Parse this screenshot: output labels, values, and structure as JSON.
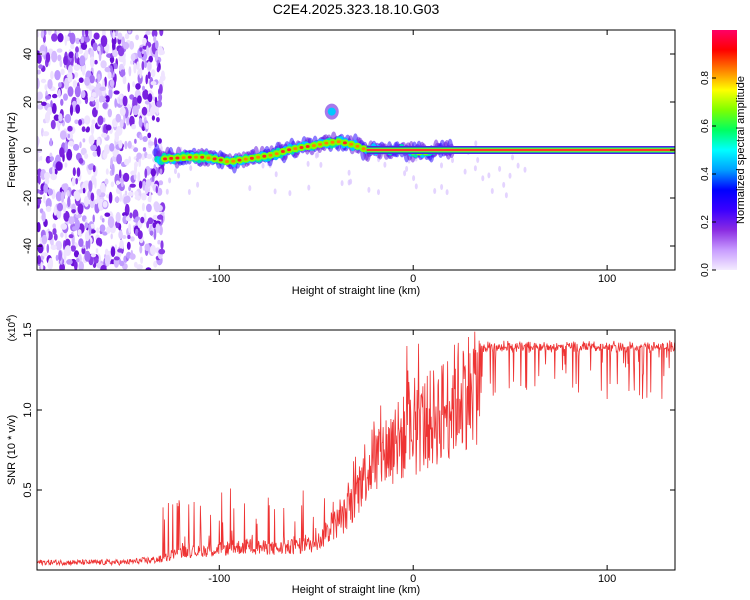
{
  "title": "C2E4.2025.323.18.10.G03",
  "colorbar": {
    "label": "Normalized spectral amplitude",
    "ticks": [
      0.0,
      0.2,
      0.4,
      0.6,
      0.8
    ],
    "tick_labels": [
      "0.0",
      "0.2",
      "0.4",
      "0.6",
      "0.8"
    ],
    "stops": [
      "#f4ecff",
      "#c89cff",
      "#8a2be2",
      "#3b00ff",
      "#0000ff",
      "#00a0ff",
      "#00ffff",
      "#00ff60",
      "#7fff00",
      "#ffff00",
      "#ff8000",
      "#ff0000",
      "#ff0066"
    ]
  },
  "chart_data": [
    {
      "type": "heatmap",
      "name": "spectrogram",
      "xlabel": "Height of straight line (km)",
      "ylabel": "Frequency (Hz)",
      "xlim": [
        -194,
        135
      ],
      "ylim": [
        -50,
        50
      ],
      "xticks": [
        -100,
        0,
        100
      ],
      "xtick_labels": [
        "-100",
        "0",
        "100"
      ],
      "yticks": [
        -40,
        -20,
        0,
        20,
        40
      ],
      "ytick_labels": [
        "-40",
        "-20",
        "0",
        "20",
        "40"
      ],
      "colormap_range": [
        0,
        1
      ],
      "noise_region_x": [
        -194,
        -132
      ],
      "signal_trace": [
        {
          "x": -132,
          "y": -4
        },
        {
          "x": -125,
          "y": -3.5
        },
        {
          "x": -115,
          "y": -3
        },
        {
          "x": -108,
          "y": -3
        },
        {
          "x": -100,
          "y": -4
        },
        {
          "x": -95,
          "y": -5
        },
        {
          "x": -88,
          "y": -4
        },
        {
          "x": -80,
          "y": -3
        },
        {
          "x": -72,
          "y": -2
        },
        {
          "x": -65,
          "y": 0
        },
        {
          "x": -58,
          "y": 1
        },
        {
          "x": -50,
          "y": 2
        },
        {
          "x": -44,
          "y": 3
        },
        {
          "x": -38,
          "y": 3.5
        },
        {
          "x": -30,
          "y": 2
        },
        {
          "x": -24,
          "y": 0
        },
        {
          "x": -15,
          "y": 0
        },
        {
          "x": -5,
          "y": 0
        },
        {
          "x": 0,
          "y": -0.5
        },
        {
          "x": 5,
          "y": -1
        },
        {
          "x": 10,
          "y": 0
        },
        {
          "x": 40,
          "y": 0
        },
        {
          "x": 80,
          "y": 0
        },
        {
          "x": 135,
          "y": 0
        }
      ],
      "side_blob": {
        "x": -42,
        "y": 16
      }
    },
    {
      "type": "line",
      "name": "snr",
      "xlabel": "Height of straight line (km)",
      "ylabel": "SNR (10 * v/v)",
      "y_multiplier": "(x10",
      "y_multiplier_exp": "4",
      "y_multiplier_close": ")",
      "xlim": [
        -194,
        135
      ],
      "ylim": [
        0,
        1.5
      ],
      "xticks": [
        -100,
        0,
        100
      ],
      "xtick_labels": [
        "-100",
        "0",
        "100"
      ],
      "yticks": [
        0.5,
        1.0,
        1.5
      ],
      "ytick_labels": [
        "0.5",
        "1.0",
        "1.5"
      ],
      "color": "#ee3333",
      "series": [
        {
          "name": "SNR",
          "envelope": [
            {
              "x": -194,
              "y": 0.05
            },
            {
              "x": -150,
              "y": 0.05
            },
            {
              "x": -130,
              "y": 0.07
            },
            {
              "x": -122,
              "y": 0.14
            },
            {
              "x": -110,
              "y": 0.14
            },
            {
              "x": -100,
              "y": 0.16
            },
            {
              "x": -85,
              "y": 0.18
            },
            {
              "x": -70,
              "y": 0.16
            },
            {
              "x": -50,
              "y": 0.2
            },
            {
              "x": -40,
              "y": 0.35
            },
            {
              "x": -35,
              "y": 0.42
            },
            {
              "x": -30,
              "y": 0.55
            },
            {
              "x": -25,
              "y": 0.75
            },
            {
              "x": -15,
              "y": 0.9
            },
            {
              "x": -5,
              "y": 1.0
            },
            {
              "x": 5,
              "y": 1.1
            },
            {
              "x": 15,
              "y": 1.2
            },
            {
              "x": 25,
              "y": 1.35
            },
            {
              "x": 35,
              "y": 1.42
            },
            {
              "x": 60,
              "y": 1.42
            },
            {
              "x": 100,
              "y": 1.42
            },
            {
              "x": 135,
              "y": 1.42
            }
          ]
        }
      ]
    }
  ]
}
